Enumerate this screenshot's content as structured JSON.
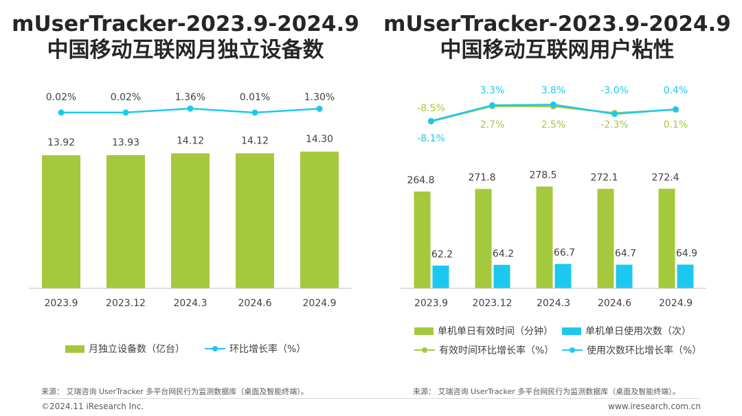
{
  "titles": {
    "left": {
      "line1": "mUserTracker-2023.9-2024.9",
      "line2": "中国移动互联网月独立设备数"
    },
    "right": {
      "line1": "mUserTracker-2023.9-2024.9",
      "line2": "中国移动互联网用户粘性"
    }
  },
  "colors": {
    "green": "#a4c93c",
    "blue": "#1cc8f0",
    "axis": "#bfbfbf"
  },
  "chart_data": [
    {
      "type": "bar",
      "title": "中国移动互联网月独立设备数",
      "categories": [
        "2023.9",
        "2023.12",
        "2024.3",
        "2024.6",
        "2024.9"
      ],
      "series": [
        {
          "name": "月独立设备数（亿台）",
          "kind": "bar",
          "values": [
            13.92,
            13.93,
            14.12,
            14.12,
            14.3
          ],
          "labels": [
            "13.92",
            "13.93",
            "14.12",
            "14.12",
            "14.30"
          ]
        },
        {
          "name": "环比增长率（%）",
          "kind": "line",
          "values": [
            0.02,
            0.02,
            1.36,
            0.01,
            1.3
          ],
          "labels": [
            "0.02%",
            "0.02%",
            "1.36%",
            "0.01%",
            "1.30%"
          ]
        }
      ],
      "ylim": [
        0,
        14.5
      ]
    },
    {
      "type": "bar",
      "title": "中国移动互联网用户粘性",
      "categories": [
        "2023.9",
        "2023.12",
        "2024.3",
        "2024.6",
        "2024.9"
      ],
      "series": [
        {
          "name": "单机单日有效时间（分钟）",
          "kind": "bar",
          "values": [
            264.8,
            271.8,
            278.5,
            272.1,
            272.4
          ],
          "labels": [
            "264.8",
            "271.8",
            "278.5",
            "272.1",
            "272.4"
          ]
        },
        {
          "name": "单机单日使用次数（次）",
          "kind": "bar",
          "values": [
            62.2,
            64.2,
            66.7,
            64.7,
            64.9
          ],
          "labels": [
            "62.2",
            "64.2",
            "66.7",
            "64.7",
            "64.9"
          ]
        },
        {
          "name": "有效时间环比增长率（%）",
          "kind": "line",
          "values": [
            -8.5,
            2.7,
            2.5,
            -2.3,
            0.1
          ],
          "labels": [
            "-8.5%",
            "2.7%",
            "2.5%",
            "-2.3%",
            "0.1%"
          ]
        },
        {
          "name": "使用次数环比增长率（%）",
          "kind": "line",
          "values": [
            -8.1,
            3.3,
            3.8,
            -3.0,
            0.4
          ],
          "labels": [
            "-8.1%",
            "3.3%",
            "3.8%",
            "-3.0%",
            "0.4%"
          ]
        }
      ]
    }
  ],
  "footer": {
    "source_left": "来源：  艾瑞咨询 UserTracker 多平台网民行为监测数据库（桌面及智能终端）。",
    "source_right": "来源：  艾瑞咨询 UserTracker 多平台网民行为监测数据库（桌面及智能终端）。",
    "copyright": "©2024.11 iResearch Inc.",
    "website": "www.iresearch.com.cn"
  }
}
